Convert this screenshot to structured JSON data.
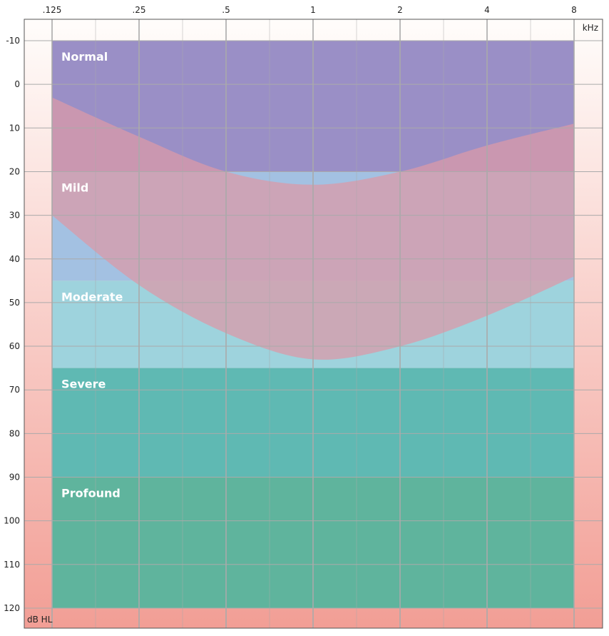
{
  "chart_data": {
    "type": "area",
    "title": "",
    "x_unit": "kHz",
    "y_unit": "dB HL",
    "x_ticks": [
      ".125",
      ".25",
      ".5",
      "1",
      "2",
      "4",
      "8"
    ],
    "x_values_khz": [
      0.125,
      0.25,
      0.5,
      1,
      2,
      4,
      8
    ],
    "x_scale": "log2",
    "y_ticks": [
      "-10",
      "0",
      "10",
      "20",
      "30",
      "40",
      "50",
      "60",
      "70",
      "80",
      "90",
      "100",
      "110",
      "120"
    ],
    "ylim": [
      -15,
      123
    ],
    "y_inverted": true,
    "grid": true,
    "bands": [
      {
        "name": "Normal",
        "range_db": [
          -10,
          20
        ],
        "color": "#9a8fc6"
      },
      {
        "name": "Mild",
        "range_db": [
          20,
          45
        ],
        "color": "#a3c1e2"
      },
      {
        "name": "Moderate",
        "range_db": [
          45,
          65
        ],
        "color": "#9ed3dd"
      },
      {
        "name": "Severe",
        "range_db": [
          65,
          90
        ],
        "color": "#5fb9b3"
      },
      {
        "name": "Profound",
        "range_db": [
          90,
          120
        ],
        "color": "#5fb49d"
      }
    ],
    "overlay_area": {
      "color": "#d99aa8",
      "frequencies_khz": [
        0.125,
        0.25,
        0.5,
        1,
        2,
        4,
        8
      ],
      "upper_db": [
        3,
        12,
        20,
        23,
        20,
        14,
        9
      ],
      "lower_db": [
        30,
        46,
        57,
        63,
        60,
        53,
        44
      ]
    },
    "colors": {
      "background_top": "#fffdfb",
      "background_bottom": "#f29e95",
      "grid": "#aaaaaa"
    }
  }
}
